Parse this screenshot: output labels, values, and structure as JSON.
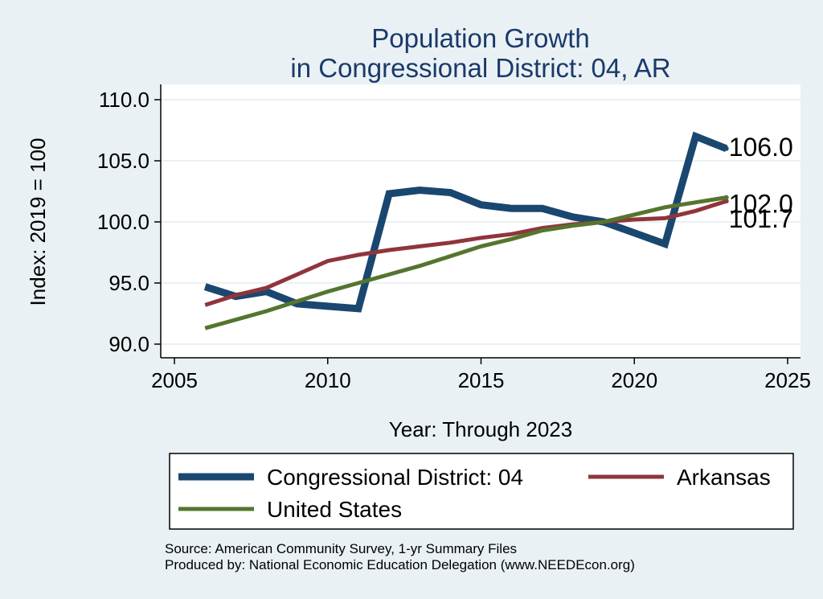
{
  "chart_data": {
    "type": "line",
    "title": [
      "Population Growth",
      "in Congressional District: 04, AR"
    ],
    "xlabel": "Year: Through 2023",
    "ylabel": "Index: 2019 = 100",
    "xlim": [
      2005,
      2025
    ],
    "ylim": [
      90,
      110
    ],
    "xticks": [
      2005,
      2010,
      2015,
      2020,
      2025
    ],
    "yticks": [
      90,
      95,
      100,
      105,
      110
    ],
    "ytick_labels": [
      "90.0",
      "95.0",
      "100.0",
      "105.0",
      "110.0"
    ],
    "grid": "horizontal",
    "legend_position": "bottom",
    "series": [
      {
        "name": "Congressional District: 04",
        "color": "#1a476f",
        "x": [
          2006,
          2007,
          2008,
          2009,
          2010,
          2011,
          2012,
          2013,
          2014,
          2015,
          2016,
          2017,
          2018,
          2019,
          2020,
          2021,
          2022,
          2023
        ],
        "values": [
          94.7,
          93.9,
          94.3,
          93.3,
          93.1,
          92.9,
          102.3,
          102.6,
          102.4,
          101.4,
          101.1,
          101.1,
          100.4,
          100.0,
          99.1,
          98.2,
          107.0,
          106.0
        ],
        "end_label": "106.0"
      },
      {
        "name": "Arkansas",
        "color": "#90353b",
        "x": [
          2006,
          2007,
          2008,
          2009,
          2010,
          2011,
          2012,
          2013,
          2014,
          2015,
          2016,
          2017,
          2018,
          2019,
          2020,
          2021,
          2022,
          2023
        ],
        "values": [
          93.2,
          94.0,
          94.6,
          95.7,
          96.8,
          97.3,
          97.7,
          98.0,
          98.3,
          98.7,
          99.0,
          99.5,
          99.8,
          100.0,
          100.2,
          100.3,
          100.9,
          101.7
        ],
        "end_label": "101.7"
      },
      {
        "name": "United States",
        "color": "#55752f",
        "x": [
          2006,
          2007,
          2008,
          2009,
          2010,
          2011,
          2012,
          2013,
          2014,
          2015,
          2016,
          2017,
          2018,
          2019,
          2020,
          2021,
          2022,
          2023
        ],
        "values": [
          91.3,
          92.0,
          92.7,
          93.5,
          94.3,
          95.0,
          95.7,
          96.4,
          97.2,
          98.0,
          98.6,
          99.3,
          99.7,
          100.0,
          100.6,
          101.2,
          101.6,
          102.0
        ],
        "end_label": "102.0"
      }
    ]
  },
  "source_lines": [
    "Source: American Community Survey, 1-yr Summary Files",
    "Produced by: National Economic Education Delegation (www.NEEDEcon.org)"
  ]
}
